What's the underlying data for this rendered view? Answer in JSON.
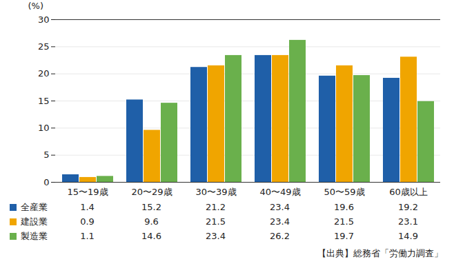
{
  "chart_data": {
    "type": "bar",
    "ylabel": "(%)",
    "categories": [
      "15〜19歳",
      "20〜29歳",
      "30〜39歳",
      "40〜49歳",
      "50〜59歳",
      "60歳以上"
    ],
    "series": [
      {
        "name": "全産業",
        "color": "#1f5fa8",
        "values": [
          1.4,
          15.2,
          21.2,
          23.4,
          19.6,
          19.2
        ]
      },
      {
        "name": "建設業",
        "color": "#f0a500",
        "values": [
          0.9,
          9.6,
          21.5,
          23.4,
          21.5,
          23.1
        ]
      },
      {
        "name": "製造業",
        "color": "#6ab04c",
        "values": [
          1.1,
          14.6,
          23.4,
          26.2,
          19.7,
          14.9
        ]
      }
    ],
    "ylim": [
      0,
      30
    ],
    "yticks": [
      0,
      5,
      10,
      15,
      20,
      25,
      30
    ],
    "grid": true,
    "caption": "【出典】総務省「労働力調査」"
  }
}
